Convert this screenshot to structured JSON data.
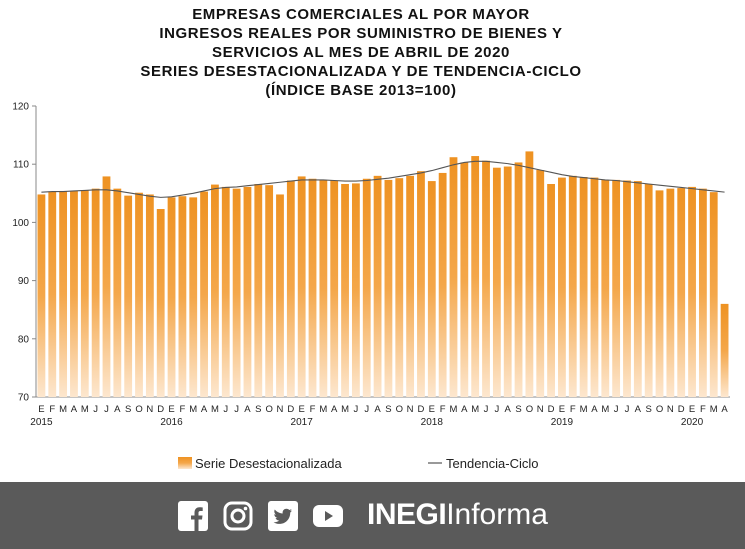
{
  "chart_data": {
    "type": "bar",
    "title_lines": [
      "EMPRESAS COMERCIALES AL POR MAYOR",
      "INGRESOS REALES POR SUMINISTRO DE BIENES Y",
      "SERVICIOS AL MES DE ABRIL DE 2020",
      "SERIES DESESTACIONALIZADA Y DE TENDENCIA-CICLO",
      "(ÍNDICE BASE 2013=100)"
    ],
    "ylim": [
      70,
      120
    ],
    "yticks": [
      "70",
      "80",
      "90",
      "100",
      "110",
      "120"
    ],
    "month_labels": [
      "E",
      "F",
      "M",
      "A",
      "M",
      "J",
      "J",
      "A",
      "S",
      "O",
      "N",
      "D",
      "E",
      "F",
      "M",
      "A",
      "M",
      "J",
      "J",
      "A",
      "S",
      "O",
      "N",
      "D",
      "E",
      "F",
      "M",
      "A",
      "M",
      "J",
      "J",
      "A",
      "S",
      "O",
      "N",
      "D",
      "E",
      "F",
      "M",
      "A",
      "M",
      "J",
      "J",
      "A",
      "S",
      "O",
      "N",
      "D",
      "E",
      "F",
      "M",
      "A",
      "M",
      "J",
      "J",
      "A",
      "S",
      "O",
      "N",
      "D",
      "E",
      "F",
      "M",
      "A"
    ],
    "year_labels": [
      {
        "label": "2015",
        "index": 0
      },
      {
        "label": "2016",
        "index": 12
      },
      {
        "label": "2017",
        "index": 24
      },
      {
        "label": "2018",
        "index": 36
      },
      {
        "label": "2019",
        "index": 48
      },
      {
        "label": "2020",
        "index": 60
      }
    ],
    "series": [
      {
        "name": "Serie Desestacionalizada",
        "type": "bar",
        "color": "#f0a030",
        "values": [
          104.8,
          105.3,
          105.4,
          105.4,
          105.5,
          105.8,
          107.9,
          105.8,
          104.6,
          105.1,
          104.8,
          102.3,
          104.3,
          104.5,
          104.3,
          105.3,
          106.5,
          106.1,
          105.8,
          106.1,
          106.6,
          106.4,
          104.8,
          107.2,
          107.9,
          107.5,
          107.2,
          107.2,
          106.6,
          106.7,
          107.5,
          108.0,
          107.3,
          107.6,
          108.0,
          108.8,
          107.1,
          108.5,
          111.2,
          110.3,
          111.4,
          110.6,
          109.4,
          109.6,
          110.3,
          112.2,
          109.0,
          106.6,
          107.7,
          108.0,
          107.8,
          107.7,
          107.3,
          107.3,
          107.2,
          107.1,
          106.6,
          105.5,
          105.8,
          105.9,
          106.1,
          105.8,
          105.2,
          86.0
        ]
      },
      {
        "name": "Tendencia-Ciclo",
        "type": "line",
        "color": "#555555",
        "values": [
          105.2,
          105.3,
          105.3,
          105.4,
          105.5,
          105.6,
          105.6,
          105.4,
          105.1,
          104.8,
          104.5,
          104.3,
          104.4,
          104.7,
          105.0,
          105.4,
          105.8,
          106.0,
          106.1,
          106.3,
          106.5,
          106.7,
          106.9,
          107.1,
          107.3,
          107.3,
          107.3,
          107.2,
          107.1,
          107.1,
          107.2,
          107.4,
          107.6,
          107.9,
          108.2,
          108.5,
          108.9,
          109.4,
          109.9,
          110.3,
          110.5,
          110.5,
          110.3,
          110.1,
          109.8,
          109.4,
          109.0,
          108.6,
          108.2,
          107.9,
          107.7,
          107.5,
          107.3,
          107.2,
          107.0,
          106.8,
          106.6,
          106.4,
          106.2,
          106.0,
          105.8,
          105.6,
          105.4,
          105.2
        ]
      }
    ],
    "legend_position": "bottom",
    "grid": false
  },
  "footer": {
    "background": "#5a5a5a",
    "icons": [
      "facebook-icon",
      "instagram-icon",
      "twitter-icon",
      "youtube-icon"
    ],
    "brand_strong": "INEGI",
    "brand_light": "Informa"
  }
}
